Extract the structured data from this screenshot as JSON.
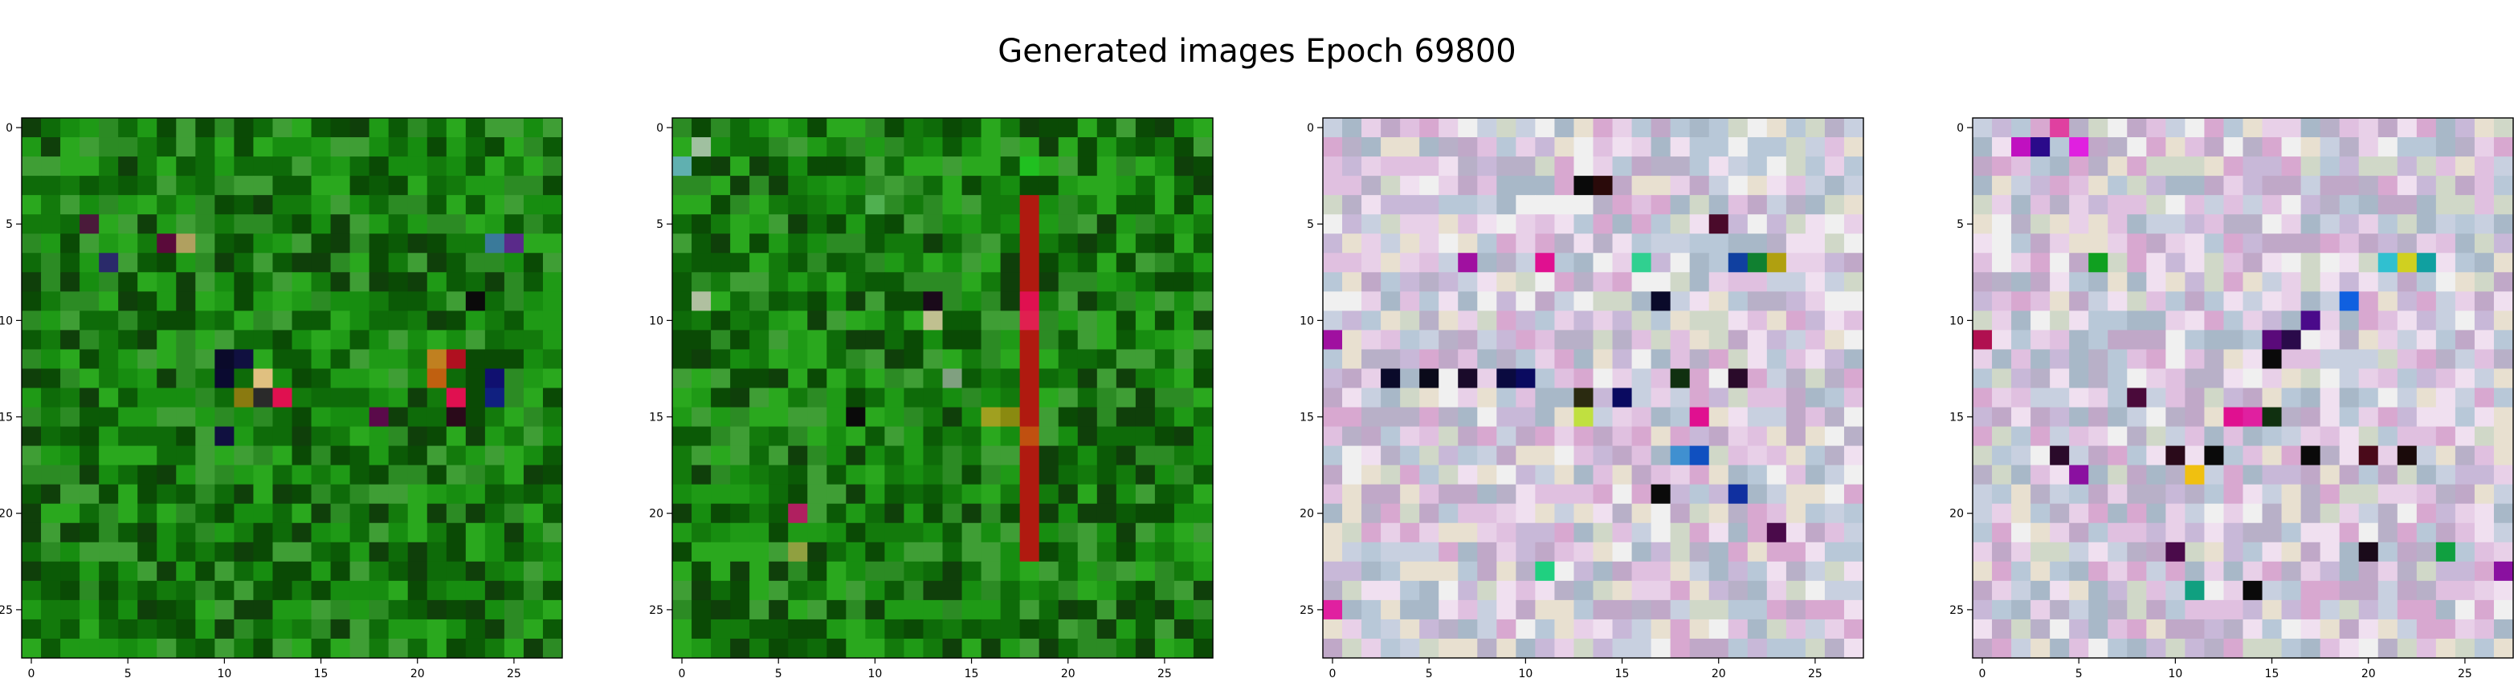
{
  "figure": {
    "title": "Generated images Epoch 69800"
  },
  "chart_data": [
    {
      "type": "heatmap",
      "title": "",
      "xlabel": "",
      "ylabel": "",
      "grid_size": 28,
      "xlim": [
        -0.5,
        27.5
      ],
      "ylim": [
        27.5,
        -0.5
      ],
      "x_ticks": [
        0,
        5,
        10,
        15,
        20,
        25
      ],
      "y_ticks": [
        0,
        5,
        10,
        15,
        20,
        25
      ],
      "grid": false,
      "colors": {
        "base": "#1a7a12",
        "palette": [
          "#0b5a06",
          "#137a0c",
          "#1f9a16",
          "#0e6b09",
          "#2aa81e",
          "#0a4a05",
          "#178d10",
          "#0f3f0a",
          "#2c8b24",
          "#3f9e35"
        ],
        "accents": [
          {
            "x": 3,
            "y": 5,
            "color": "#4a1a3a"
          },
          {
            "x": 4,
            "y": 7,
            "color": "#2a2a6a"
          },
          {
            "x": 7,
            "y": 6,
            "color": "#5a0a3a"
          },
          {
            "x": 8,
            "y": 6,
            "color": "#b0a060"
          },
          {
            "x": 10,
            "y": 12,
            "color": "#0a0a2a"
          },
          {
            "x": 10,
            "y": 13,
            "color": "#0a0a30"
          },
          {
            "x": 11,
            "y": 12,
            "color": "#101040"
          },
          {
            "x": 11,
            "y": 14,
            "color": "#8a7a10"
          },
          {
            "x": 12,
            "y": 13,
            "color": "#e0c080"
          },
          {
            "x": 13,
            "y": 14,
            "color": "#e01050"
          },
          {
            "x": 12,
            "y": 14,
            "color": "#2a2a2a"
          },
          {
            "x": 10,
            "y": 16,
            "color": "#101040"
          },
          {
            "x": 21,
            "y": 12,
            "color": "#c08020"
          },
          {
            "x": 21,
            "y": 13,
            "color": "#c06010"
          },
          {
            "x": 22,
            "y": 12,
            "color": "#b01020"
          },
          {
            "x": 22,
            "y": 14,
            "color": "#e01050"
          },
          {
            "x": 23,
            "y": 9,
            "color": "#0a0a0a"
          },
          {
            "x": 24,
            "y": 13,
            "color": "#101070"
          },
          {
            "x": 24,
            "y": 14,
            "color": "#102080"
          },
          {
            "x": 25,
            "y": 6,
            "color": "#5a2a8a"
          },
          {
            "x": 24,
            "y": 6,
            "color": "#3a7a9a"
          },
          {
            "x": 22,
            "y": 15,
            "color": "#2a0a1a"
          },
          {
            "x": 18,
            "y": 15,
            "color": "#5a0a4a"
          }
        ]
      }
    },
    {
      "type": "heatmap",
      "title": "",
      "xlabel": "",
      "ylabel": "",
      "grid_size": 28,
      "xlim": [
        -0.5,
        27.5
      ],
      "ylim": [
        27.5,
        -0.5
      ],
      "x_ticks": [
        0,
        5,
        10,
        15,
        20,
        25
      ],
      "y_ticks": [
        0,
        5,
        10,
        15,
        20,
        25
      ],
      "grid": false,
      "colors": {
        "base": "#1a7a12",
        "palette": [
          "#0b5a06",
          "#137a0c",
          "#1f9a16",
          "#0e6b09",
          "#2aa81e",
          "#0a4a05",
          "#178d10",
          "#0f3f0a",
          "#2c8b24",
          "#3f9e35"
        ],
        "stripe": {
          "x": 18,
          "from": 4,
          "to": 22,
          "color": "#b01a10"
        },
        "accents": [
          {
            "x": 18,
            "y": 9,
            "color": "#e01050"
          },
          {
            "x": 18,
            "y": 10,
            "color": "#e02050"
          },
          {
            "x": 18,
            "y": 16,
            "color": "#c05010"
          },
          {
            "x": 17,
            "y": 15,
            "color": "#8a8a10"
          },
          {
            "x": 16,
            "y": 15,
            "color": "#a0a020"
          },
          {
            "x": 13,
            "y": 10,
            "color": "#c0c090"
          },
          {
            "x": 14,
            "y": 13,
            "color": "#80a080"
          },
          {
            "x": 9,
            "y": 15,
            "color": "#0a0a0a"
          },
          {
            "x": 13,
            "y": 9,
            "color": "#1a0a1a"
          },
          {
            "x": 6,
            "y": 20,
            "color": "#b02060"
          },
          {
            "x": 6,
            "y": 22,
            "color": "#90a040"
          },
          {
            "x": 1,
            "y": 1,
            "color": "#a0c0a0"
          },
          {
            "x": 0,
            "y": 2,
            "color": "#60b0b0"
          },
          {
            "x": 1,
            "y": 9,
            "color": "#b0c0a0"
          },
          {
            "x": 18,
            "y": 2,
            "color": "#20c020"
          },
          {
            "x": 10,
            "y": 4,
            "color": "#50b050"
          }
        ]
      }
    },
    {
      "type": "heatmap",
      "title": "",
      "xlabel": "",
      "ylabel": "",
      "grid_size": 28,
      "xlim": [
        -0.5,
        27.5
      ],
      "ylim": [
        27.5,
        -0.5
      ],
      "x_ticks": [
        0,
        5,
        10,
        15,
        20,
        25
      ],
      "y_ticks": [
        0,
        5,
        10,
        15,
        20,
        25
      ],
      "grid": false,
      "colors": {
        "base": "#d8c8d8",
        "palette": [
          "#e8d0e8",
          "#c8b8d8",
          "#f0e0f0",
          "#b8c8d8",
          "#e0c0e0",
          "#d0d8c8",
          "#c0a8c8",
          "#f0f0f0",
          "#d8a8d0",
          "#b8b0c8",
          "#e8e0d0",
          "#a8b8c8",
          "#c8d0e0"
        ],
        "accents": [
          {
            "x": 13,
            "y": 3,
            "color": "#0a0a0a"
          },
          {
            "x": 14,
            "y": 3,
            "color": "#2a0a0a"
          },
          {
            "x": 7,
            "y": 7,
            "color": "#a010a0"
          },
          {
            "x": 11,
            "y": 7,
            "color": "#e01090"
          },
          {
            "x": 16,
            "y": 7,
            "color": "#30d090"
          },
          {
            "x": 21,
            "y": 7,
            "color": "#1040a0"
          },
          {
            "x": 22,
            "y": 7,
            "color": "#108030"
          },
          {
            "x": 23,
            "y": 7,
            "color": "#b0a010"
          },
          {
            "x": 0,
            "y": 11,
            "color": "#a010a0"
          },
          {
            "x": 3,
            "y": 13,
            "color": "#0a0a2a"
          },
          {
            "x": 5,
            "y": 13,
            "color": "#0a0a1a"
          },
          {
            "x": 7,
            "y": 13,
            "color": "#1a0a2a"
          },
          {
            "x": 9,
            "y": 13,
            "color": "#0a0a40"
          },
          {
            "x": 10,
            "y": 13,
            "color": "#0a0a60"
          },
          {
            "x": 13,
            "y": 14,
            "color": "#2a2a10"
          },
          {
            "x": 15,
            "y": 14,
            "color": "#0a0a60"
          },
          {
            "x": 18,
            "y": 13,
            "color": "#103010"
          },
          {
            "x": 21,
            "y": 13,
            "color": "#2a0a2a"
          },
          {
            "x": 17,
            "y": 9,
            "color": "#0a0a2a"
          },
          {
            "x": 17,
            "y": 19,
            "color": "#0a0a0a"
          },
          {
            "x": 18,
            "y": 17,
            "color": "#4090d0"
          },
          {
            "x": 19,
            "y": 17,
            "color": "#1050c0"
          },
          {
            "x": 21,
            "y": 19,
            "color": "#1030a0"
          },
          {
            "x": 23,
            "y": 21,
            "color": "#4a0a4a"
          },
          {
            "x": 11,
            "y": 23,
            "color": "#20d080"
          },
          {
            "x": 0,
            "y": 25,
            "color": "#e020a0"
          },
          {
            "x": 13,
            "y": 15,
            "color": "#c0e040"
          },
          {
            "x": 19,
            "y": 15,
            "color": "#e01090"
          },
          {
            "x": 20,
            "y": 5,
            "color": "#4a0a2a"
          }
        ]
      }
    },
    {
      "type": "heatmap",
      "title": "",
      "xlabel": "",
      "ylabel": "",
      "grid_size": 28,
      "xlim": [
        -0.5,
        27.5
      ],
      "ylim": [
        27.5,
        -0.5
      ],
      "x_ticks": [
        0,
        5,
        10,
        15,
        20,
        25
      ],
      "y_ticks": [
        0,
        5,
        10,
        15,
        20,
        25
      ],
      "grid": false,
      "colors": {
        "base": "#d8c8d8",
        "palette": [
          "#e8d0e8",
          "#c8b8d8",
          "#f0e0f0",
          "#b8c8d8",
          "#e0c0e0",
          "#d0d8c8",
          "#c0a8c8",
          "#f0f0f0",
          "#d8a8d0",
          "#b8b0c8",
          "#e8e0d0",
          "#a8b8c8",
          "#c8d0e0"
        ],
        "accents": [
          {
            "x": 2,
            "y": 1,
            "color": "#c010c0"
          },
          {
            "x": 3,
            "y": 1,
            "color": "#2a0a8a"
          },
          {
            "x": 5,
            "y": 1,
            "color": "#e020e0"
          },
          {
            "x": 4,
            "y": 0,
            "color": "#e040a0"
          },
          {
            "x": 6,
            "y": 7,
            "color": "#10a020"
          },
          {
            "x": 21,
            "y": 7,
            "color": "#30c0d0"
          },
          {
            "x": 22,
            "y": 7,
            "color": "#d0d020"
          },
          {
            "x": 23,
            "y": 7,
            "color": "#10a0a0"
          },
          {
            "x": 19,
            "y": 9,
            "color": "#1060e0"
          },
          {
            "x": 15,
            "y": 11,
            "color": "#5a0a7a"
          },
          {
            "x": 16,
            "y": 11,
            "color": "#2a0a4a"
          },
          {
            "x": 17,
            "y": 10,
            "color": "#4a0a8a"
          },
          {
            "x": 15,
            "y": 12,
            "color": "#0a0a0a"
          },
          {
            "x": 8,
            "y": 14,
            "color": "#4a0a3a"
          },
          {
            "x": 13,
            "y": 15,
            "color": "#e01090"
          },
          {
            "x": 14,
            "y": 15,
            "color": "#e020a0"
          },
          {
            "x": 15,
            "y": 15,
            "color": "#103010"
          },
          {
            "x": 4,
            "y": 17,
            "color": "#2a0a2a"
          },
          {
            "x": 10,
            "y": 17,
            "color": "#2a0a1a"
          },
          {
            "x": 12,
            "y": 17,
            "color": "#0a0a0a"
          },
          {
            "x": 17,
            "y": 17,
            "color": "#0a0a0a"
          },
          {
            "x": 20,
            "y": 17,
            "color": "#4a0a1a"
          },
          {
            "x": 22,
            "y": 17,
            "color": "#1a0a0a"
          },
          {
            "x": 11,
            "y": 18,
            "color": "#f0c010"
          },
          {
            "x": 5,
            "y": 18,
            "color": "#8a10a0"
          },
          {
            "x": 10,
            "y": 22,
            "color": "#4a0a4a"
          },
          {
            "x": 20,
            "y": 22,
            "color": "#1a0a1a"
          },
          {
            "x": 24,
            "y": 22,
            "color": "#10a040"
          },
          {
            "x": 27,
            "y": 23,
            "color": "#8a10a0"
          },
          {
            "x": 14,
            "y": 24,
            "color": "#0a0a0a"
          },
          {
            "x": 11,
            "y": 24,
            "color": "#10a080"
          },
          {
            "x": 0,
            "y": 11,
            "color": "#b01050"
          }
        ]
      }
    }
  ]
}
